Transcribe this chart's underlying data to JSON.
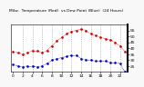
{
  "title": "Milw.   Temperature (Red)   vs   Dew Pt.",
  "title2": "vs Dew Point (Blue)",
  "title3": "(24 Hours)",
  "bg_color": "#f8f8f8",
  "plot_bg": "#ffffff",
  "grid_color": "#999999",
  "temp_color": "#cc0000",
  "dew_color": "#0000cc",
  "hours": [
    0,
    1,
    2,
    3,
    4,
    5,
    6,
    7,
    8,
    9,
    10,
    11,
    12,
    13,
    14,
    15,
    16,
    17,
    18,
    19,
    20,
    21,
    22,
    23
  ],
  "temperature": [
    37,
    36,
    35,
    36,
    38,
    38,
    36,
    38,
    42,
    46,
    49,
    52,
    54,
    55,
    56,
    55,
    52,
    51,
    49,
    48,
    47,
    45,
    42,
    37
  ],
  "dew_point": [
    26,
    25,
    24,
    25,
    25,
    24,
    25,
    27,
    30,
    31,
    32,
    33,
    34,
    34,
    31,
    30,
    30,
    29,
    29,
    29,
    28,
    28,
    27,
    20
  ],
  "ylim": [
    20,
    60
  ],
  "yticks": [
    25,
    30,
    35,
    40,
    45,
    50,
    55
  ],
  "tick_fontsize": 3.2,
  "title_fontsize": 3.2
}
